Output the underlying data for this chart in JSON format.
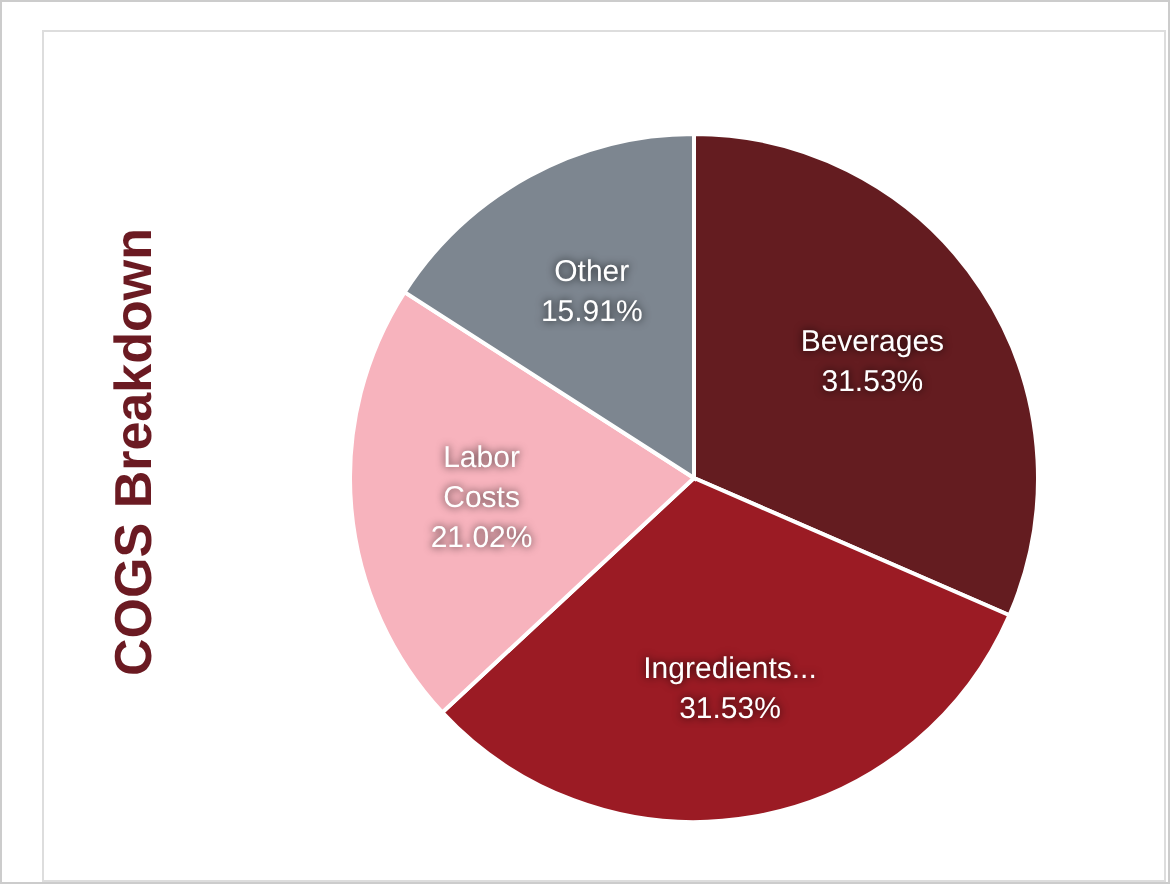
{
  "chart_data": {
    "type": "pie",
    "title": "COGS Breakdown",
    "categories": [
      "Beverages",
      "Ingredients...",
      "Labor Costs",
      "Other"
    ],
    "values": [
      31.53,
      31.53,
      21.02,
      15.91
    ],
    "colors": [
      "#641c20",
      "#9b1b24",
      "#f7b3bd",
      "#7d8690"
    ],
    "value_labels": [
      "31.53%",
      "31.53%",
      "21.02%",
      "15.91%"
    ]
  }
}
